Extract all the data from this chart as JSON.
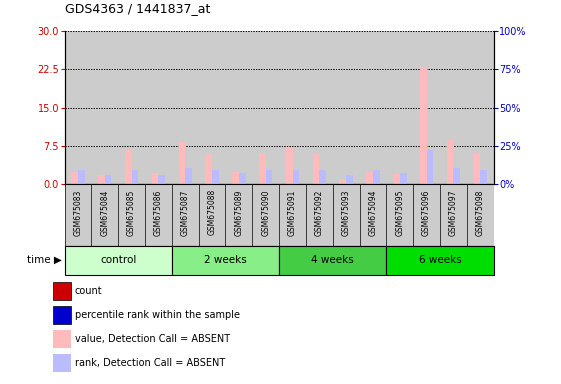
{
  "title": "GDS4363 / 1441837_at",
  "samples": [
    "GSM675083",
    "GSM675084",
    "GSM675085",
    "GSM675086",
    "GSM675087",
    "GSM675088",
    "GSM675089",
    "GSM675090",
    "GSM675091",
    "GSM675092",
    "GSM675093",
    "GSM675094",
    "GSM675095",
    "GSM675096",
    "GSM675097",
    "GSM675098"
  ],
  "groups": [
    {
      "label": "control",
      "count": 4,
      "color": "#ccffcc"
    },
    {
      "label": "2 weeks",
      "count": 4,
      "color": "#88ee88"
    },
    {
      "label": "4 weeks",
      "count": 4,
      "color": "#44cc44"
    },
    {
      "label": "6 weeks",
      "count": 4,
      "color": "#00dd00"
    }
  ],
  "value_absent": [
    2.5,
    1.8,
    6.8,
    2.2,
    8.2,
    6.0,
    2.5,
    6.2,
    7.2,
    6.0,
    1.0,
    2.4,
    2.1,
    22.8,
    8.7,
    6.0
  ],
  "rank_absent": [
    9.0,
    6.0,
    9.0,
    6.0,
    10.5,
    9.6,
    7.5,
    9.6,
    9.0,
    9.6,
    6.0,
    9.0,
    7.5,
    22.5,
    10.5,
    9.6
  ],
  "left_yticks": [
    0,
    7.5,
    15,
    22.5,
    30
  ],
  "right_yticks": [
    0,
    25,
    50,
    75,
    100
  ],
  "ylim_left": [
    0,
    30
  ],
  "ylim_right": [
    0,
    100
  ],
  "bar_width": 0.25,
  "color_value_absent": "#ffbbbb",
  "color_rank_absent": "#bbbbff",
  "color_value_present": "#dd2222",
  "color_rank_present": "#2222dd",
  "bg_color": "#cccccc",
  "legend_items": [
    {
      "label": "count",
      "color": "#cc0000"
    },
    {
      "label": "percentile rank within the sample",
      "color": "#0000cc"
    },
    {
      "label": "value, Detection Call = ABSENT",
      "color": "#ffbbbb"
    },
    {
      "label": "rank, Detection Call = ABSENT",
      "color": "#bbbbff"
    }
  ]
}
